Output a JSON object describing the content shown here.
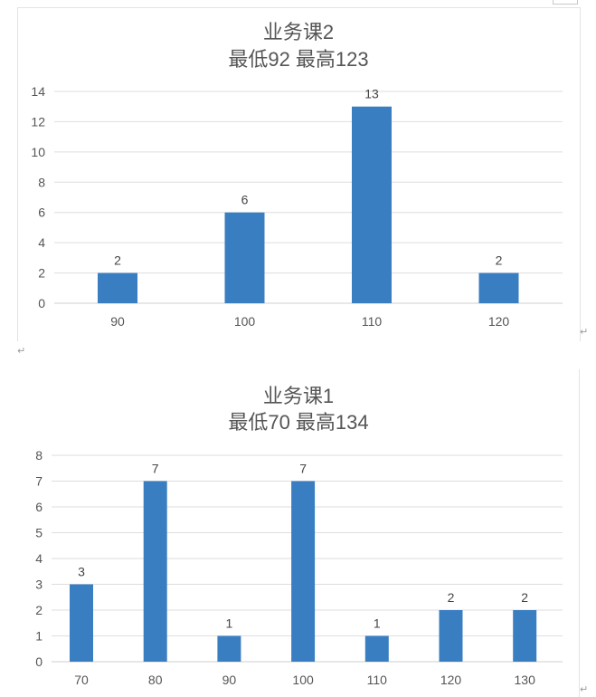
{
  "return_mark": "↵",
  "chart_data": [
    {
      "type": "bar",
      "title": "业务课2",
      "subtitle": "最低92 最高123",
      "categories": [
        "90",
        "100",
        "110",
        "120"
      ],
      "values": [
        2,
        6,
        13,
        2
      ],
      "ylim": [
        0,
        14
      ],
      "yticks": [
        0,
        2,
        4,
        6,
        8,
        10,
        12,
        14
      ],
      "xlabel": "",
      "ylabel": "",
      "grid": true,
      "color": "#3a7ec2"
    },
    {
      "type": "bar",
      "title": "业务课1",
      "subtitle": "最低70 最高134",
      "categories": [
        "70",
        "80",
        "90",
        "100",
        "110",
        "120",
        "130"
      ],
      "values": [
        3,
        7,
        1,
        7,
        1,
        2,
        2
      ],
      "ylim": [
        0,
        8
      ],
      "yticks": [
        0,
        1,
        2,
        3,
        4,
        5,
        6,
        7,
        8
      ],
      "xlabel": "",
      "ylabel": "",
      "grid": true,
      "color": "#3a7ec2"
    }
  ]
}
